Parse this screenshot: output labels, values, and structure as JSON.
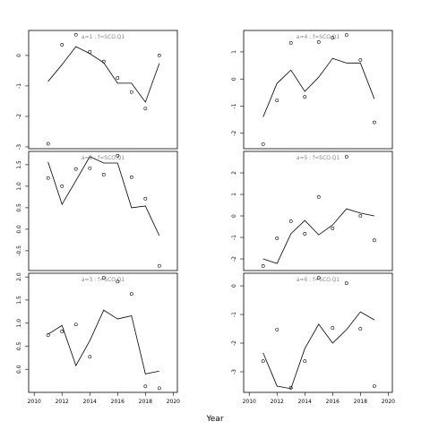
{
  "xlabel": "Year",
  "chart_data": [
    {
      "type": "scatter-line",
      "title": "a=1 : f=SCO.Q1",
      "x": [
        2011,
        2012,
        2013,
        2014,
        2015,
        2016,
        2017,
        2018,
        2019
      ],
      "series": [
        {
          "style": "points",
          "color": "#000000",
          "values": [
            -2.9,
            0.35,
            0.68,
            0.12,
            -0.2,
            -0.74,
            -1.2,
            -1.74,
            0
          ]
        },
        {
          "style": "line",
          "color": "#000000",
          "values": [
            -0.85,
            -0.3,
            0.29,
            0.06,
            -0.24,
            -0.91,
            -0.91,
            -1.53,
            -0.26
          ]
        }
      ],
      "xlim": [
        2009.6,
        2020.3
      ],
      "ylim": [
        -3.06,
        0.82
      ],
      "yticks": [
        0,
        -1,
        -2,
        -3
      ]
    },
    {
      "type": "scatter-line",
      "title": "a=2 : f=SCO.Q1",
      "x": [
        2011,
        2012,
        2013,
        2014,
        2015,
        2016,
        2017,
        2018,
        2019
      ],
      "series": [
        {
          "style": "points",
          "color": "#000000",
          "values": [
            1.19,
            1.0,
            1.4,
            1.42,
            1.27,
            1.71,
            1.21,
            0.71,
            -0.85
          ]
        },
        {
          "style": "line",
          "color": "#000000",
          "values": [
            1.56,
            0.58,
            1.13,
            1.69,
            1.54,
            1.54,
            0.5,
            0.54,
            -0.15
          ]
        }
      ],
      "xlim": [
        2009.6,
        2020.3
      ],
      "ylim": [
        -0.96,
        1.81
      ],
      "yticks": [
        {
          "value": 1.5,
          "label": "1.5"
        },
        {
          "value": 1,
          "label": "1.0"
        },
        {
          "value": 0.5,
          "label": "0.5"
        },
        {
          "value": 0,
          "label": "0.0"
        },
        {
          "value": -0.5,
          "label": "-0.5"
        }
      ]
    },
    {
      "type": "scatter-line",
      "title": "a=3 : f=SCO.Q1",
      "x": [
        2011,
        2012,
        2013,
        2014,
        2015,
        2016,
        2017,
        2018,
        2019
      ],
      "series": [
        {
          "style": "points",
          "color": "#000000",
          "values": [
            0.74,
            0.82,
            0.97,
            0.27,
            1.98,
            1.9,
            1.63,
            -0.37,
            -0.41
          ]
        },
        {
          "style": "line",
          "color": "#000000",
          "values": [
            0.76,
            0.95,
            0.08,
            0.62,
            1.28,
            1.09,
            1.16,
            -0.1,
            -0.04
          ]
        }
      ],
      "xlim": [
        2009.6,
        2020.3
      ],
      "ylim": [
        -0.5,
        2.08
      ],
      "yticks": [
        {
          "value": 2,
          "label": "2.0"
        },
        {
          "value": 1.5,
          "label": "1.5"
        },
        {
          "value": 1,
          "label": "1.0"
        },
        {
          "value": 0.5,
          "label": "0.5"
        },
        {
          "value": 0,
          "label": "0.0"
        }
      ],
      "xticks": [
        2010,
        2012,
        2014,
        2016,
        2018,
        2020
      ]
    },
    {
      "type": "scatter-line",
      "title": "a=4 : f=SCO.Q1",
      "x": [
        2011,
        2012,
        2013,
        2014,
        2015,
        2016,
        2017,
        2018,
        2019
      ],
      "series": [
        {
          "style": "points",
          "color": "#000000",
          "values": [
            -2.4,
            -0.79,
            1.33,
            -0.66,
            1.36,
            1.52,
            1.62,
            0.7,
            -1.6
          ]
        },
        {
          "style": "line",
          "color": "#000000",
          "values": [
            -1.4,
            -0.16,
            0.33,
            -0.46,
            0.07,
            0.76,
            0.59,
            0.59,
            -0.73
          ]
        }
      ],
      "xlim": [
        2009.6,
        2020.3
      ],
      "ylim": [
        -2.57,
        1.79
      ],
      "yticks": [
        1,
        0,
        -1,
        -2
      ]
    },
    {
      "type": "scatter-line",
      "title": "a=5 : f=SCO.Q1",
      "x": [
        2011,
        2012,
        2013,
        2014,
        2015,
        2016,
        2017,
        2018,
        2019
      ],
      "series": [
        {
          "style": "points",
          "color": "#000000",
          "values": [
            -2.33,
            -1.04,
            -0.25,
            -0.83,
            0.88,
            -0.58,
            2.75,
            0,
            -1.13
          ]
        },
        {
          "style": "line",
          "color": "#000000",
          "values": [
            -2.0,
            -2.21,
            -0.83,
            -0.21,
            -0.88,
            -0.42,
            0.33,
            0.13,
            0
          ]
        }
      ],
      "xlim": [
        2009.6,
        2020.3
      ],
      "ylim": [
        -2.54,
        3.0
      ],
      "yticks": [
        2,
        1,
        0,
        -1,
        -2
      ]
    },
    {
      "type": "scatter-line",
      "title": "a=6 : f=SCO.Q1",
      "x": [
        2011,
        2012,
        2013,
        2014,
        2015,
        2016,
        2017,
        2018,
        2019
      ],
      "series": [
        {
          "style": "points",
          "color": "#000000",
          "values": [
            -2.63,
            -1.53,
            -3.56,
            -2.63,
            0.28,
            -1.47,
            0.09,
            -1.5,
            -3.5
          ]
        },
        {
          "style": "line",
          "color": "#000000",
          "values": [
            -2.34,
            -3.5,
            -3.59,
            -2.19,
            -1.34,
            -2.0,
            -1.53,
            -0.91,
            -1.19
          ]
        }
      ],
      "xlim": [
        2009.6,
        2020.3
      ],
      "ylim": [
        -3.72,
        0.44
      ],
      "yticks": [
        0,
        -1,
        -2,
        -3
      ],
      "xticks": [
        2010,
        2012,
        2014,
        2016,
        2018,
        2020
      ]
    }
  ]
}
